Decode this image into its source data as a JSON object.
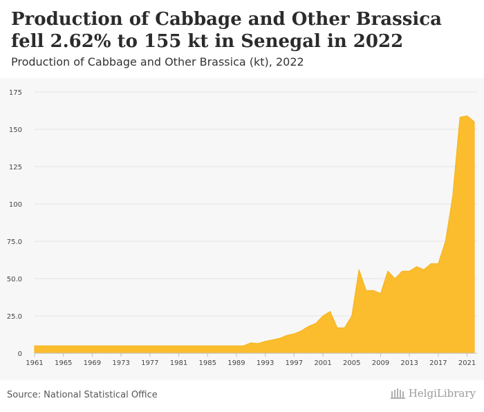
{
  "header": {
    "title": "Production of Cabbage and Other Brassica fell 2.62% to 155 kt in Senegal in 2022",
    "subtitle": "Production of Cabbage and Other Brassica (kt), 2022"
  },
  "footer": {
    "source": "Source: National Statistical Office",
    "logo_text": "HelgiLibrary"
  },
  "colors": {
    "area": "#fbbd2d",
    "area_stroke": "#f5b21a",
    "grid": "#e3e3e3",
    "axis_text": "#444444"
  },
  "chart_data": {
    "type": "area",
    "title": "Production of Cabbage and Other Brassica (kt), 2022",
    "xlabel": "",
    "ylabel": "",
    "x": [
      1961,
      1962,
      1963,
      1964,
      1965,
      1966,
      1967,
      1968,
      1969,
      1970,
      1971,
      1972,
      1973,
      1974,
      1975,
      1976,
      1977,
      1978,
      1979,
      1980,
      1981,
      1982,
      1983,
      1984,
      1985,
      1986,
      1987,
      1988,
      1989,
      1990,
      1991,
      1992,
      1993,
      1994,
      1995,
      1996,
      1997,
      1998,
      1999,
      2000,
      2001,
      2002,
      2003,
      2004,
      2005,
      2006,
      2007,
      2008,
      2009,
      2010,
      2011,
      2012,
      2013,
      2014,
      2015,
      2016,
      2017,
      2018,
      2019,
      2020,
      2021,
      2022
    ],
    "values": [
      5,
      5,
      5,
      5,
      5,
      5,
      5,
      5,
      5,
      5,
      5,
      5,
      5,
      5,
      5,
      5,
      5,
      5,
      5,
      5,
      5,
      5,
      5,
      5,
      5,
      5,
      5,
      5,
      5,
      5,
      7,
      6.5,
      8,
      9,
      10,
      12,
      13,
      15,
      18,
      20,
      25,
      28,
      17,
      17,
      25,
      56,
      42,
      42,
      40,
      55,
      50,
      55,
      55,
      58,
      56,
      60,
      60,
      75,
      105,
      158,
      159,
      155
    ],
    "xticks": [
      "1961",
      "1965",
      "1969",
      "1973",
      "1977",
      "1981",
      "1985",
      "1989",
      "1993",
      "1997",
      "2001",
      "2005",
      "2009",
      "2013",
      "2017",
      "2021"
    ],
    "yticks": [
      "0",
      "25.0",
      "50.0",
      "75.0",
      "100",
      "125",
      "150",
      "175"
    ],
    "ylim": [
      0,
      175
    ],
    "xlim": [
      1961,
      2022
    ],
    "grid": true,
    "legend": "none"
  }
}
